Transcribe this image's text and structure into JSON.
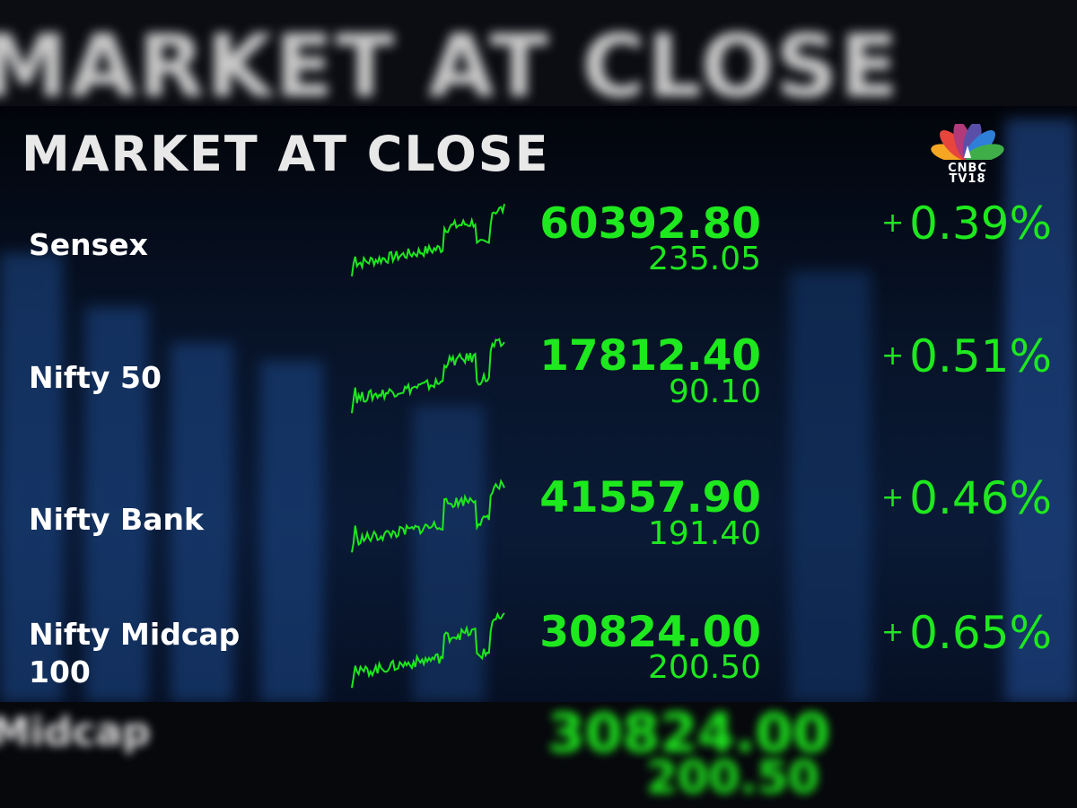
{
  "header": {
    "title": "MARKET AT CLOSE",
    "logo_text": [
      "CNBC",
      "TV18"
    ]
  },
  "colors": {
    "up": "#1ee81e",
    "background": "#071226"
  },
  "indices": [
    {
      "name": "Sensex",
      "price": "60392.80",
      "change": "235.05",
      "percent": "0.39%",
      "sign": "+"
    },
    {
      "name": "Nifty 50",
      "price": "17812.40",
      "change": "90.10",
      "percent": "0.51%",
      "sign": "+"
    },
    {
      "name": "Nifty Bank",
      "price": "41557.90",
      "change": "191.40",
      "percent": "0.46%",
      "sign": "+"
    },
    {
      "name": "Nifty Midcap 100",
      "price": "30824.00",
      "change": "200.50",
      "percent": "0.65%",
      "sign": "+"
    }
  ]
}
